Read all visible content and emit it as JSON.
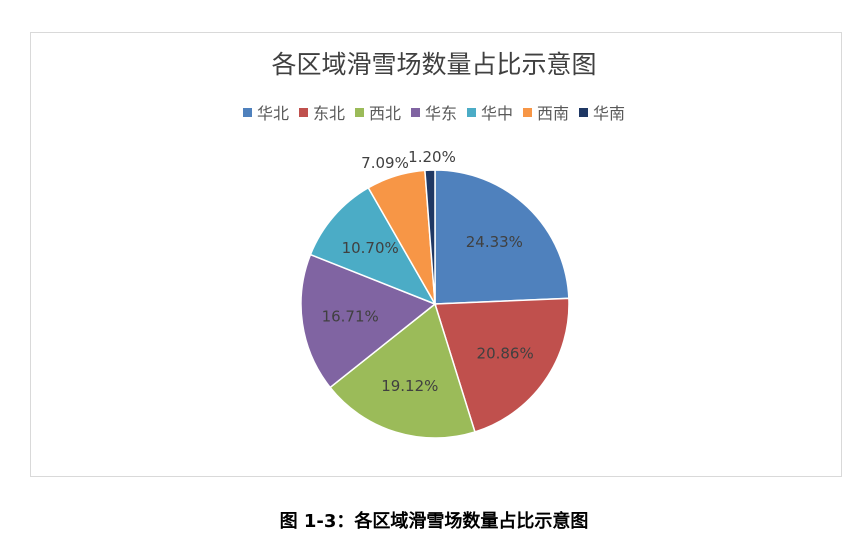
{
  "chart_data": {
    "type": "pie",
    "title": "各区域滑雪场数量占比示意图",
    "categories": [
      "华北",
      "东北",
      "西北",
      "华东",
      "华中",
      "西南",
      "华南"
    ],
    "values": [
      24.33,
      20.86,
      19.12,
      16.71,
      10.7,
      7.09,
      1.2
    ],
    "labels": [
      "24.33%",
      "20.86%",
      "19.12%",
      "16.71%",
      "10.70%",
      "7.09%",
      "1.20%"
    ],
    "colors": [
      "#4f81bd",
      "#c0504d",
      "#9bbb59",
      "#8064a2",
      "#4bacc6",
      "#f79646",
      "#1f3864"
    ],
    "legend_position": "top"
  },
  "caption": "图 1-3：各区域滑雪场数量占比示意图"
}
